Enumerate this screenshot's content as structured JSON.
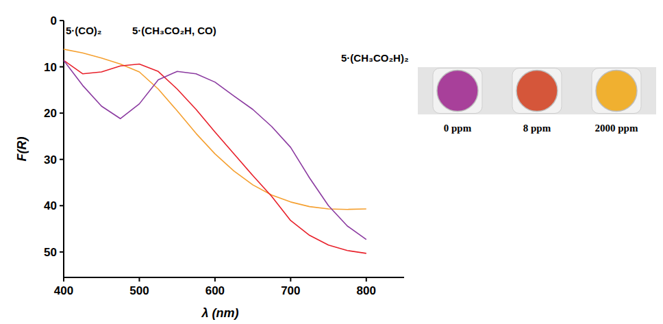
{
  "chart_data": {
    "type": "line",
    "x_label": "λ (nm)",
    "y_label": "F(R)",
    "xlim": [
      400,
      850
    ],
    "ylim": [
      55.5,
      0
    ],
    "xticks": [
      400,
      500,
      600,
      700,
      800
    ],
    "yticks": [
      0,
      10,
      20,
      30,
      40,
      50
    ],
    "x": [
      400,
      425,
      450,
      475,
      500,
      525,
      550,
      575,
      600,
      625,
      650,
      675,
      700,
      725,
      750,
      775,
      800
    ],
    "series": [
      {
        "name": "5·(CO)₂",
        "color": "#f5a030",
        "values": [
          6.2,
          7.0,
          8.1,
          9.4,
          11.1,
          14.8,
          19.5,
          24.4,
          28.8,
          32.5,
          35.5,
          37.7,
          39.2,
          40.2,
          40.7,
          40.8,
          40.7
        ]
      },
      {
        "name": "5·(CH₃CO₂H, CO)",
        "color": "#e8202a",
        "values": [
          8.6,
          11.5,
          11.1,
          9.8,
          9.4,
          11.0,
          14.8,
          19.2,
          24.1,
          28.8,
          33.5,
          38.0,
          43.2,
          46.4,
          48.5,
          49.7,
          50.3
        ]
      },
      {
        "name": "5·(CH₃CO₂H)₂",
        "color": "#8b3aa0",
        "values": [
          8.6,
          14.0,
          18.5,
          21.2,
          18.0,
          12.8,
          11.0,
          11.5,
          13.3,
          16.3,
          19.2,
          22.9,
          27.4,
          34.0,
          40.0,
          44.4,
          47.3
        ]
      }
    ],
    "samples": [
      {
        "label": "0 ppm",
        "color": "#a8409a"
      },
      {
        "label": "8 ppm",
        "color": "#d5563a"
      },
      {
        "label": "2000 ppm",
        "color": "#f0b030"
      }
    ]
  }
}
